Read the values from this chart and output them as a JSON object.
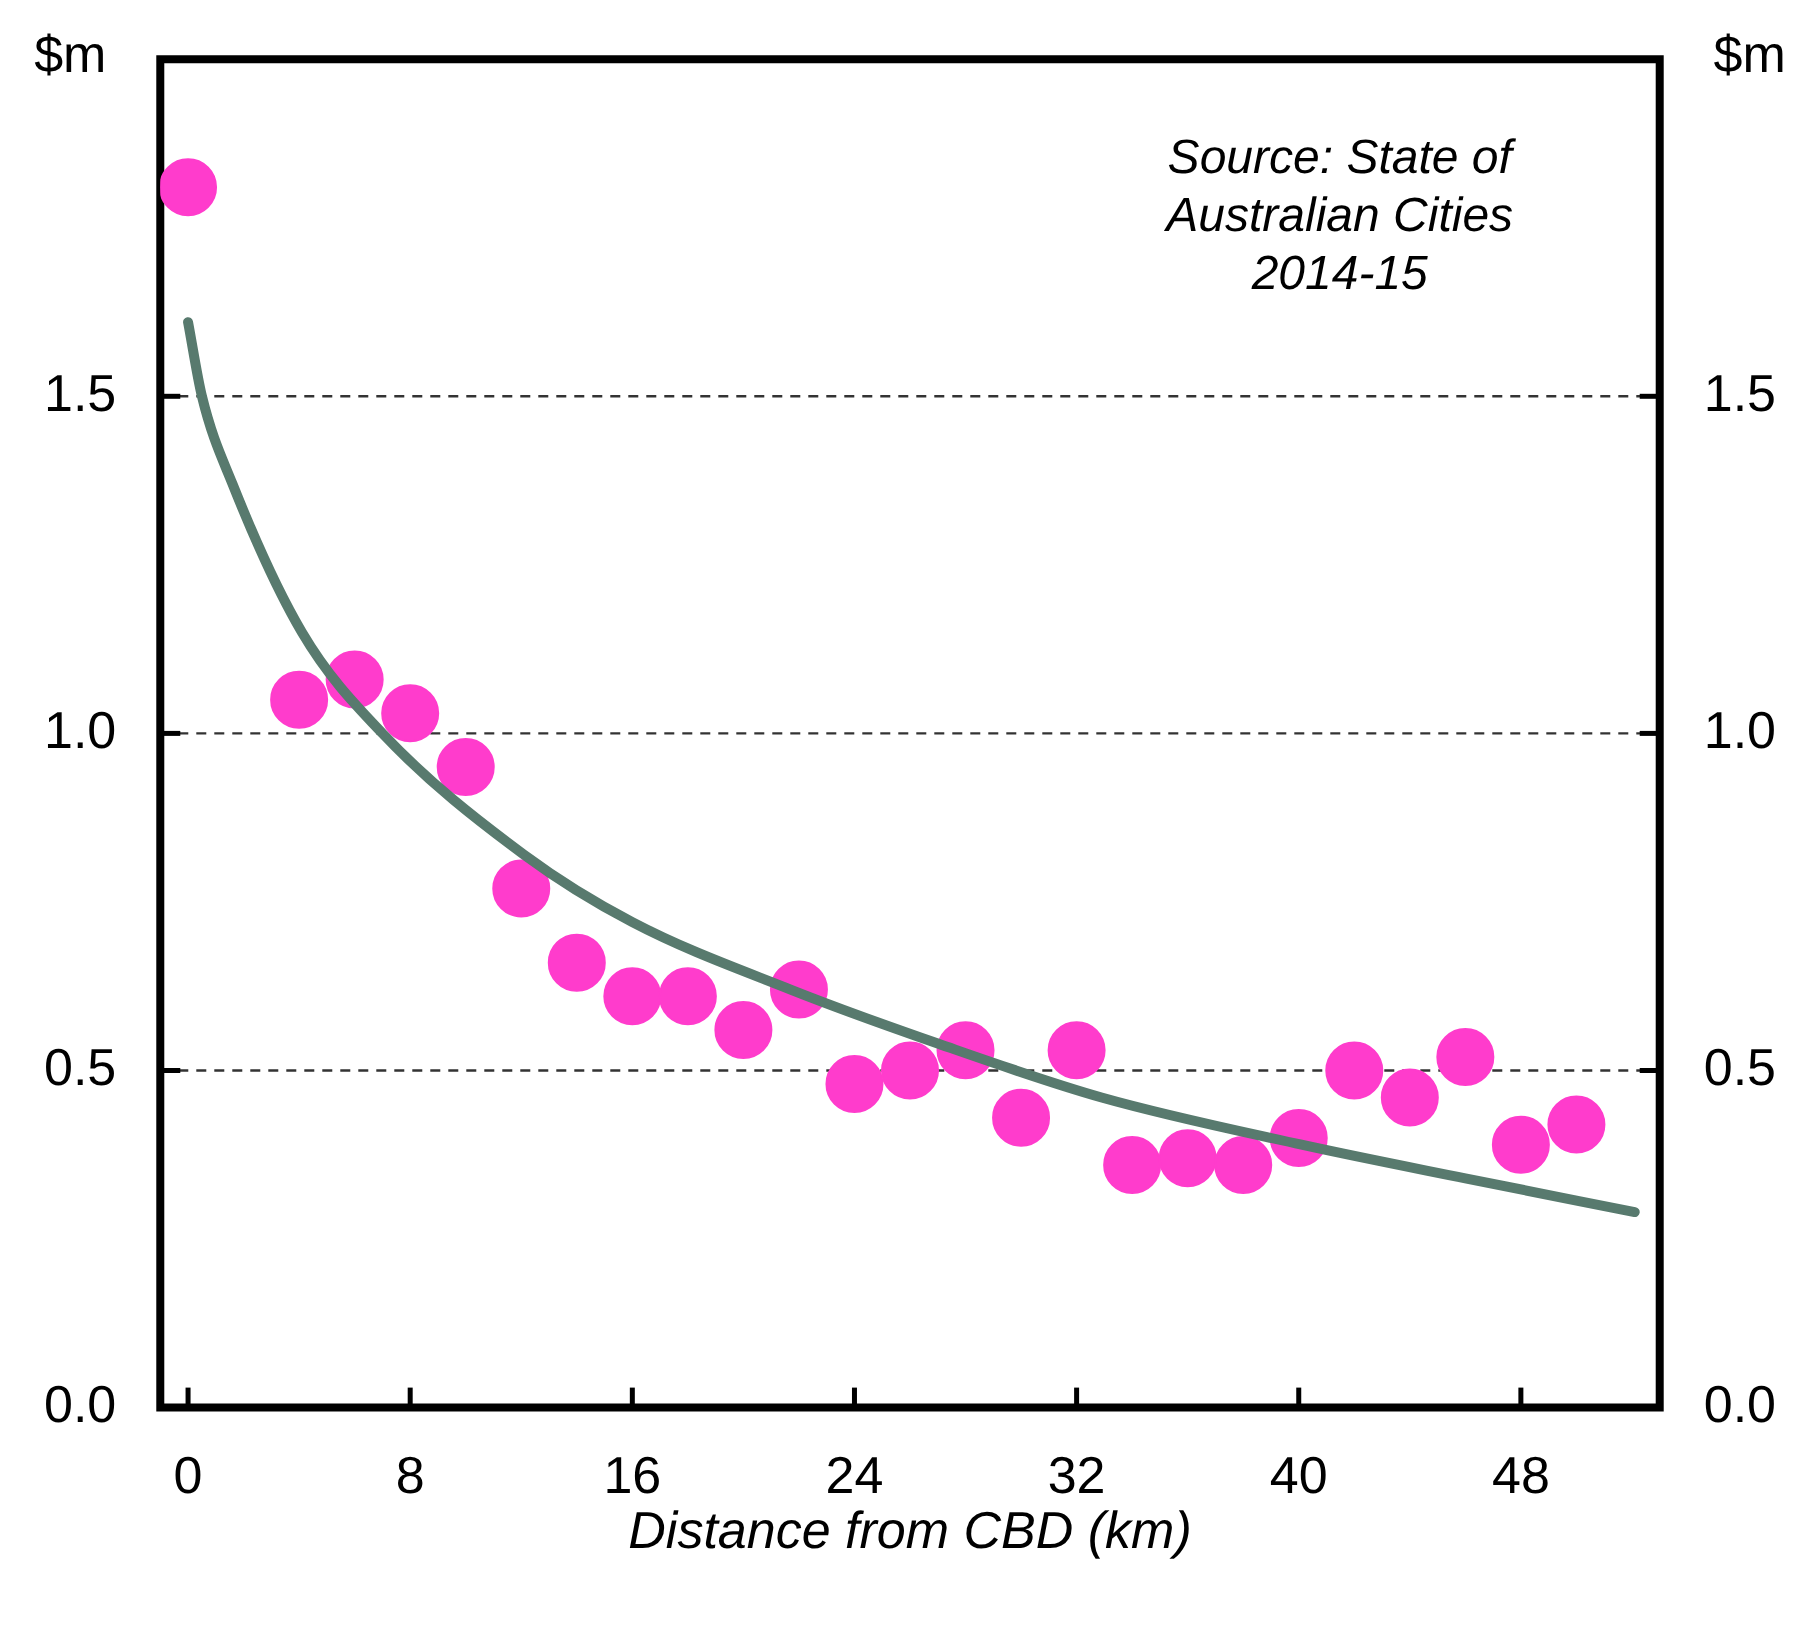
{
  "chart_data": {
    "type": "scatter",
    "xlabel": "Distance from CBD (km)",
    "ylabel": "$m",
    "y2label": "$m",
    "annotations": [
      "Source: State of Australian Cities 2014-15"
    ],
    "xlim": [
      -1,
      53
    ],
    "xticks": [
      0,
      8,
      16,
      24,
      32,
      40,
      48
    ],
    "ylim": [
      0,
      2
    ],
    "yticks": [
      {
        "value": 0,
        "label": "0.0"
      },
      0.5,
      {
        "value": 1,
        "label": "1.0"
      },
      1.5
    ],
    "y2lim": [
      0,
      2
    ],
    "y2ticks": [
      {
        "value": 0,
        "label": "0.0"
      },
      0.5,
      {
        "value": 1,
        "label": "1.0"
      },
      1.5
    ],
    "grid": "y",
    "legend": false,
    "marker": "circle",
    "series": [
      {
        "color": "#ff3ccc",
        "x": [
          0,
          4,
          6,
          8,
          10,
          12,
          14,
          16,
          18,
          20,
          22,
          24,
          26,
          28,
          30,
          32,
          34,
          36,
          38,
          40,
          42,
          44,
          46,
          48,
          50
        ],
        "values": [
          1.81,
          1.05,
          1.08,
          1.03,
          0.95,
          0.77,
          0.66,
          0.61,
          0.61,
          0.56,
          0.62,
          0.48,
          0.5,
          0.53,
          0.43,
          0.53,
          0.36,
          0.37,
          0.36,
          0.4,
          0.5,
          0.46,
          0.52,
          0.39,
          0.42
        ]
      },
      {
        "type": "line",
        "color": "#587a6e",
        "marker": "none",
        "x": [
          0,
          0.5,
          1.6,
          4.1,
          7,
          12.1,
          16,
          21.7,
          27,
          32.9,
          40.1,
          46,
          52.1
        ],
        "values": [
          1.61,
          1.5,
          1.37,
          1.15,
          1.0,
          0.82,
          0.72,
          0.62,
          0.54,
          0.46,
          0.39,
          0.34,
          0.29
        ]
      }
    ]
  }
}
